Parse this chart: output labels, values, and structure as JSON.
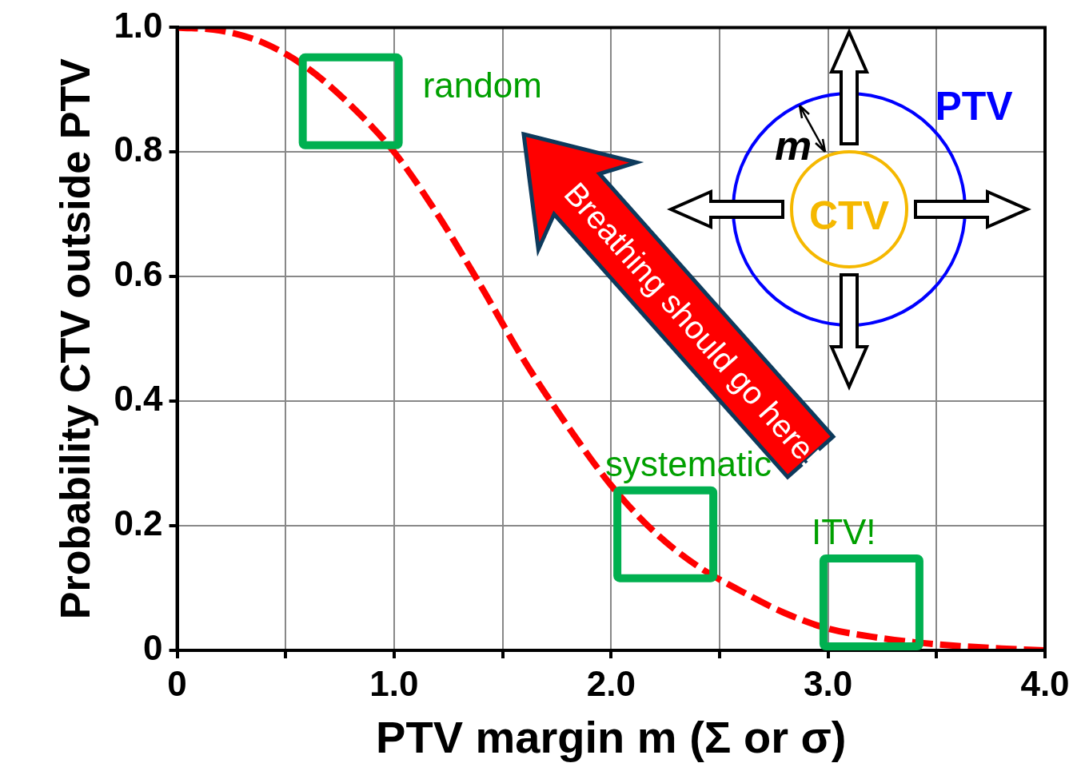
{
  "chart_data": {
    "type": "line",
    "xlabel": "PTV margin m (Σ or σ)",
    "ylabel": "Probability CTV outside PTV",
    "x": [
      0,
      0.2,
      0.4,
      0.6,
      0.8,
      1.0,
      1.2,
      1.4,
      1.6,
      1.8,
      2.0,
      2.2,
      2.4,
      2.6,
      2.8,
      3.0,
      3.2,
      3.4,
      3.6,
      3.8,
      4.0
    ],
    "series": [
      {
        "color": "#ff0000",
        "values": [
          1.0,
          0.995,
          0.975,
          0.935,
          0.875,
          0.8,
          0.7,
          0.585,
          0.465,
          0.36,
          0.265,
          0.19,
          0.135,
          0.095,
          0.06,
          0.035,
          0.022,
          0.013,
          0.007,
          0.003,
          0.0
        ]
      }
    ],
    "xlim": [
      0,
      4
    ],
    "xticks": [
      0,
      {
        "value": 0.5,
        "label": null
      },
      {
        "value": 1,
        "label": "1.0"
      },
      {
        "value": 1.5,
        "label": null
      },
      {
        "value": 2,
        "label": "2.0"
      },
      {
        "value": 2.5,
        "label": null
      },
      {
        "value": 3,
        "label": "3.0"
      },
      {
        "value": 3.5,
        "label": null
      },
      {
        "value": 4,
        "label": "4.0"
      }
    ],
    "ylim": [
      0,
      1
    ],
    "yticks": [
      0,
      0.2,
      0.4,
      0.6,
      0.8,
      {
        "value": 1,
        "label": "1.0"
      }
    ],
    "grid": true,
    "legend": false,
    "marker": "none",
    "line_style": "dashed",
    "annotations": [
      {
        "text": "random",
        "x": 0.8,
        "y": 0.875
      },
      {
        "text": "systematic",
        "x": 2.25,
        "y": 0.18
      },
      {
        "text": "ITV!",
        "x": 3.2,
        "y": 0.022
      },
      "Breathing should go here!",
      "PTV",
      "CTV",
      "m"
    ]
  }
}
